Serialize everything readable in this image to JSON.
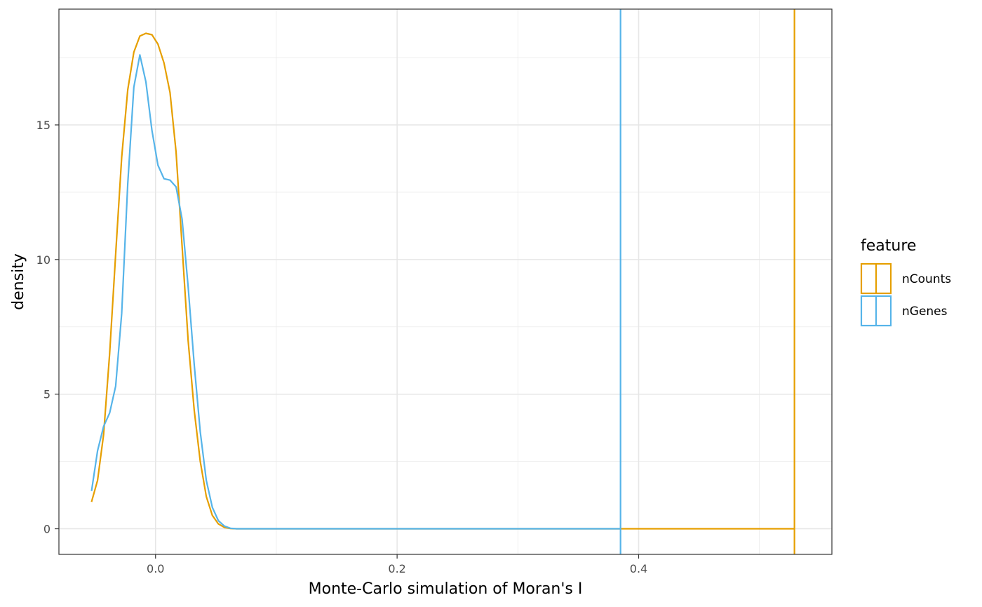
{
  "chart_data": {
    "type": "line",
    "xlabel": "Monte-Carlo simulation of Moran's I",
    "ylabel": "density",
    "xlim": [
      -0.08,
      0.56
    ],
    "ylim": [
      -0.95,
      19.3
    ],
    "x_ticks": [
      0.0,
      0.2,
      0.4
    ],
    "x_tick_labels": [
      "0.0",
      "0.2",
      "0.4"
    ],
    "y_ticks": [
      0,
      5,
      10,
      15
    ],
    "y_tick_labels": [
      "0",
      "5",
      "10",
      "15"
    ],
    "grid": true,
    "legend": {
      "title": "feature",
      "position": "right"
    },
    "series": [
      {
        "name": "nCounts",
        "color": "#E69F00",
        "x": [
          -0.053,
          -0.048,
          -0.043,
          -0.038,
          -0.033,
          -0.028,
          -0.023,
          -0.018,
          -0.013,
          -0.008,
          -0.003,
          0.002,
          0.007,
          0.012,
          0.017,
          0.022,
          0.027,
          0.032,
          0.037,
          0.042,
          0.047,
          0.052,
          0.057,
          0.062,
          0.067,
          0.072,
          0.08,
          0.1,
          0.2,
          0.3,
          0.4,
          0.5,
          0.529
        ],
        "values": [
          1.0,
          1.8,
          3.5,
          6.5,
          10.2,
          13.8,
          16.3,
          17.7,
          18.3,
          18.4,
          18.35,
          18.0,
          17.3,
          16.2,
          14.0,
          10.5,
          7.0,
          4.4,
          2.5,
          1.2,
          0.5,
          0.18,
          0.05,
          0.01,
          0.0,
          0.0,
          0.0,
          0.0,
          0.0,
          0.0,
          0.0,
          0.0,
          0.0
        ],
        "vline": 0.529
      },
      {
        "name": "nGenes",
        "color": "#56B4E9",
        "x": [
          -0.053,
          -0.048,
          -0.043,
          -0.038,
          -0.033,
          -0.028,
          -0.023,
          -0.018,
          -0.013,
          -0.008,
          -0.003,
          0.002,
          0.007,
          0.012,
          0.017,
          0.022,
          0.027,
          0.032,
          0.037,
          0.042,
          0.047,
          0.052,
          0.057,
          0.062,
          0.067,
          0.072,
          0.08,
          0.1,
          0.2,
          0.3,
          0.385
        ],
        "values": [
          1.4,
          2.9,
          3.8,
          4.3,
          5.3,
          8.0,
          12.8,
          16.4,
          17.6,
          16.6,
          14.8,
          13.5,
          13.0,
          12.95,
          12.7,
          11.5,
          9.0,
          6.1,
          3.6,
          1.8,
          0.8,
          0.3,
          0.1,
          0.02,
          0.0,
          0.0,
          0.0,
          0.0,
          0.0,
          0.0,
          0.0
        ],
        "vline": 0.385
      }
    ]
  }
}
